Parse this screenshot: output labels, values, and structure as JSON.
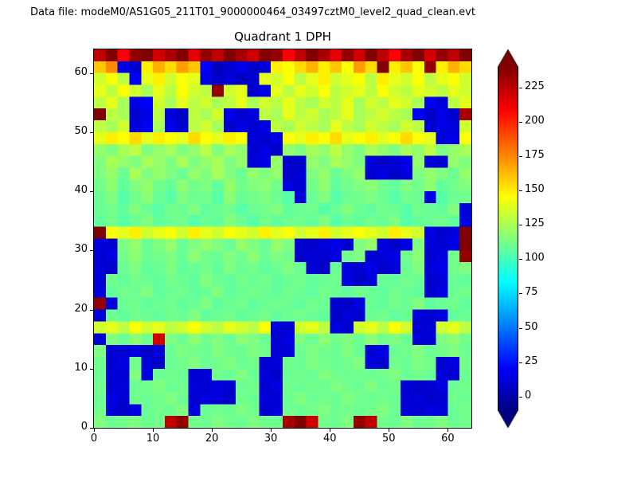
{
  "window": {
    "background": "#ffffff"
  },
  "header": {
    "data_file_label": "Data file: modeM0/AS1G05_211T01_9000000464_03497cztM0_level2_quad_clean.evt"
  },
  "chart_data": {
    "type": "heatmap",
    "title": "Quadrant 1 DPH",
    "xlabel": "",
    "ylabel": "",
    "x_range": [
      0,
      64
    ],
    "y_range": [
      0,
      64
    ],
    "x_ticks": [
      0,
      10,
      20,
      30,
      40,
      50,
      60
    ],
    "y_ticks": [
      0,
      10,
      20,
      30,
      40,
      50,
      60
    ],
    "colormap": "jet",
    "color_scale": {
      "vmin": -10,
      "vmax": 240,
      "extend": "both"
    },
    "colorbar_ticks": [
      0,
      25,
      50,
      75,
      100,
      125,
      150,
      175,
      200,
      225
    ],
    "grid": {
      "rows": 32,
      "cols": 32,
      "row_order": "top-to-bottom",
      "downsampled_from": "64x64"
    },
    "values": [
      [
        225,
        240,
        210,
        235,
        245,
        220,
        230,
        250,
        215,
        235,
        225,
        240,
        230,
        220,
        245,
        235,
        210,
        225,
        240,
        230,
        215,
        235,
        220,
        245,
        225,
        210,
        230,
        240,
        220,
        235,
        225,
        245
      ],
      [
        160,
        175,
        15,
        10,
        150,
        165,
        155,
        170,
        160,
        20,
        5,
        10,
        15,
        8,
        12,
        150,
        145,
        155,
        165,
        150,
        160,
        145,
        170,
        155,
        240,
        150,
        160,
        145,
        235,
        150,
        165,
        155
      ],
      [
        135,
        145,
        130,
        20,
        140,
        150,
        135,
        145,
        140,
        15,
        8,
        12,
        6,
        10,
        140,
        135,
        145,
        130,
        140,
        150,
        135,
        140,
        145,
        130,
        150,
        140,
        135,
        145,
        130,
        140,
        145,
        135
      ],
      [
        140,
        130,
        145,
        135,
        125,
        140,
        130,
        145,
        135,
        130,
        235,
        135,
        140,
        10,
        15,
        140,
        130,
        140,
        135,
        145,
        130,
        135,
        140,
        130,
        145,
        135,
        130,
        140,
        135,
        130,
        140,
        135
      ],
      [
        130,
        140,
        125,
        15,
        20,
        135,
        125,
        140,
        130,
        135,
        125,
        130,
        140,
        125,
        135,
        130,
        140,
        130,
        125,
        135,
        130,
        140,
        125,
        135,
        130,
        140,
        135,
        125,
        18,
        12,
        130,
        140
      ],
      [
        245,
        130,
        125,
        10,
        15,
        130,
        12,
        8,
        130,
        125,
        135,
        15,
        10,
        12,
        130,
        125,
        140,
        130,
        135,
        125,
        130,
        140,
        125,
        130,
        135,
        130,
        125,
        20,
        8,
        15,
        10,
        230
      ],
      [
        130,
        125,
        135,
        12,
        18,
        125,
        15,
        10,
        130,
        135,
        125,
        8,
        14,
        10,
        15,
        130,
        125,
        135,
        130,
        125,
        140,
        130,
        125,
        135,
        130,
        125,
        135,
        130,
        10,
        15,
        12,
        135
      ],
      [
        140,
        150,
        145,
        155,
        140,
        150,
        145,
        140,
        155,
        145,
        140,
        150,
        145,
        12,
        10,
        15,
        145,
        140,
        150,
        145,
        155,
        140,
        145,
        150,
        140,
        145,
        155,
        145,
        140,
        12,
        15,
        145
      ],
      [
        120,
        115,
        125,
        130,
        115,
        120,
        125,
        115,
        120,
        130,
        115,
        125,
        120,
        10,
        14,
        8,
        120,
        115,
        125,
        120,
        130,
        120,
        115,
        125,
        120,
        115,
        125,
        120,
        130,
        115,
        120,
        125
      ],
      [
        115,
        125,
        120,
        115,
        125,
        120,
        115,
        125,
        115,
        120,
        125,
        115,
        120,
        12,
        15,
        120,
        10,
        8,
        120,
        115,
        125,
        120,
        115,
        12,
        8,
        10,
        15,
        120,
        12,
        10,
        120,
        115
      ],
      [
        115,
        120,
        110,
        125,
        115,
        120,
        115,
        110,
        120,
        115,
        125,
        115,
        110,
        120,
        115,
        120,
        8,
        12,
        115,
        120,
        110,
        115,
        120,
        10,
        14,
        8,
        12,
        115,
        120,
        115,
        110,
        120
      ],
      [
        112,
        118,
        108,
        115,
        120,
        112,
        108,
        118,
        112,
        115,
        108,
        120,
        112,
        115,
        118,
        112,
        14,
        10,
        112,
        118,
        108,
        112,
        115,
        118,
        112,
        108,
        115,
        112,
        118,
        108,
        112,
        115
      ],
      [
        110,
        115,
        105,
        112,
        118,
        110,
        105,
        115,
        110,
        112,
        105,
        118,
        110,
        112,
        115,
        110,
        105,
        12,
        110,
        115,
        105,
        110,
        112,
        115,
        110,
        105,
        112,
        110,
        15,
        105,
        110,
        112
      ],
      [
        110,
        112,
        108,
        115,
        110,
        105,
        112,
        110,
        115,
        108,
        110,
        112,
        105,
        110,
        112,
        115,
        108,
        110,
        112,
        105,
        110,
        115,
        110,
        108,
        112,
        110,
        105,
        112,
        110,
        108,
        115,
        12
      ],
      [
        108,
        112,
        105,
        110,
        115,
        108,
        110,
        112,
        105,
        110,
        108,
        115,
        110,
        105,
        112,
        108,
        110,
        112,
        108,
        115,
        105,
        110,
        108,
        112,
        110,
        115,
        105,
        108,
        110,
        112,
        108,
        14
      ],
      [
        240,
        145,
        140,
        150,
        135,
        140,
        145,
        135,
        150,
        140,
        135,
        145,
        140,
        135,
        150,
        140,
        145,
        135,
        140,
        150,
        135,
        140,
        145,
        140,
        135,
        150,
        140,
        135,
        15,
        10,
        12,
        245
      ],
      [
        12,
        10,
        115,
        120,
        110,
        115,
        120,
        110,
        115,
        120,
        115,
        110,
        120,
        115,
        110,
        120,
        115,
        10,
        8,
        12,
        15,
        10,
        115,
        120,
        12,
        8,
        15,
        115,
        12,
        10,
        15,
        240
      ],
      [
        10,
        14,
        112,
        118,
        110,
        112,
        115,
        110,
        118,
        112,
        110,
        115,
        112,
        118,
        110,
        115,
        112,
        8,
        12,
        10,
        14,
        112,
        115,
        10,
        12,
        15,
        112,
        118,
        10,
        14,
        112,
        235
      ],
      [
        12,
        8,
        110,
        115,
        108,
        110,
        115,
        108,
        110,
        112,
        108,
        115,
        110,
        112,
        108,
        110,
        115,
        110,
        10,
        8,
        110,
        12,
        10,
        15,
        8,
        12,
        110,
        115,
        12,
        15,
        112,
        115
      ],
      [
        10,
        112,
        108,
        112,
        110,
        108,
        112,
        110,
        108,
        115,
        110,
        108,
        112,
        110,
        112,
        108,
        110,
        112,
        108,
        110,
        112,
        14,
        8,
        12,
        110,
        108,
        112,
        110,
        10,
        12,
        110,
        108
      ],
      [
        12,
        108,
        112,
        110,
        115,
        108,
        110,
        112,
        108,
        110,
        115,
        108,
        110,
        112,
        110,
        108,
        112,
        110,
        108,
        112,
        110,
        108,
        112,
        110,
        108,
        112,
        110,
        108,
        10,
        14,
        110,
        112
      ],
      [
        235,
        12,
        110,
        112,
        108,
        110,
        112,
        108,
        110,
        115,
        108,
        110,
        112,
        108,
        110,
        112,
        110,
        108,
        112,
        110,
        10,
        8,
        14,
        110,
        108,
        112,
        110,
        115,
        108,
        110,
        112,
        108
      ],
      [
        12,
        110,
        108,
        112,
        110,
        108,
        112,
        110,
        115,
        108,
        110,
        112,
        108,
        110,
        112,
        108,
        110,
        112,
        110,
        108,
        8,
        12,
        10,
        110,
        112,
        108,
        110,
        12,
        10,
        14,
        108,
        110
      ],
      [
        135,
        140,
        130,
        145,
        135,
        140,
        130,
        135,
        145,
        135,
        130,
        140,
        135,
        130,
        145,
        12,
        10,
        135,
        140,
        130,
        14,
        10,
        135,
        140,
        130,
        145,
        135,
        10,
        12,
        135,
        140,
        130
      ],
      [
        12,
        115,
        110,
        118,
        112,
        220,
        115,
        110,
        118,
        112,
        115,
        110,
        118,
        115,
        110,
        10,
        14,
        115,
        110,
        118,
        112,
        115,
        110,
        118,
        112,
        115,
        110,
        12,
        10,
        115,
        118,
        112
      ],
      [
        115,
        12,
        10,
        14,
        8,
        12,
        110,
        115,
        112,
        110,
        115,
        112,
        110,
        115,
        112,
        10,
        12,
        110,
        115,
        112,
        110,
        115,
        110,
        10,
        14,
        110,
        112,
        115,
        110,
        112,
        115,
        110
      ],
      [
        112,
        10,
        14,
        112,
        12,
        8,
        110,
        112,
        115,
        110,
        112,
        115,
        110,
        112,
        10,
        12,
        112,
        110,
        115,
        112,
        110,
        112,
        115,
        12,
        10,
        112,
        110,
        115,
        112,
        10,
        14,
        112
      ],
      [
        110,
        12,
        10,
        115,
        14,
        110,
        112,
        110,
        10,
        12,
        112,
        110,
        115,
        110,
        12,
        8,
        110,
        112,
        110,
        115,
        112,
        110,
        112,
        110,
        112,
        115,
        110,
        112,
        110,
        12,
        10,
        110
      ],
      [
        112,
        10,
        12,
        110,
        112,
        115,
        110,
        112,
        12,
        10,
        14,
        10,
        110,
        112,
        10,
        14,
        112,
        110,
        112,
        110,
        115,
        112,
        110,
        115,
        110,
        112,
        12,
        8,
        10,
        14,
        110,
        112
      ],
      [
        110,
        14,
        10,
        112,
        110,
        112,
        115,
        110,
        10,
        14,
        12,
        8,
        112,
        110,
        12,
        10,
        110,
        115,
        110,
        112,
        110,
        115,
        112,
        110,
        112,
        110,
        10,
        12,
        8,
        10,
        112,
        110
      ],
      [
        112,
        12,
        8,
        14,
        110,
        112,
        110,
        115,
        12,
        110,
        112,
        110,
        115,
        112,
        10,
        12,
        112,
        110,
        112,
        115,
        110,
        112,
        110,
        112,
        115,
        110,
        12,
        10,
        14,
        12,
        110,
        112
      ],
      [
        115,
        110,
        112,
        115,
        110,
        112,
        225,
        235,
        112,
        110,
        115,
        112,
        110,
        115,
        112,
        110,
        230,
        240,
        220,
        112,
        110,
        115,
        235,
        225,
        112,
        110,
        115,
        110,
        112,
        115,
        110,
        112
      ]
    ]
  }
}
